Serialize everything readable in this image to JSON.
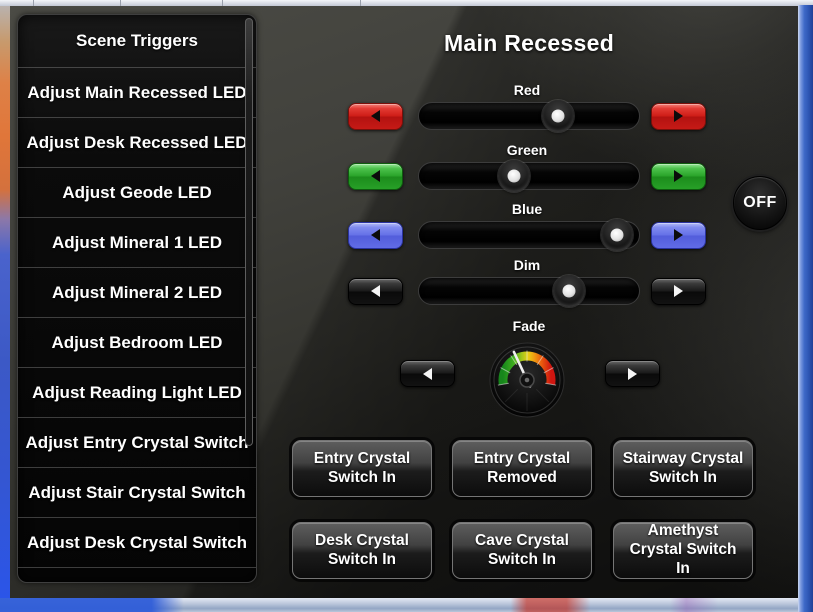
{
  "sidebar": {
    "items": [
      "Scene Triggers",
      "Adjust Main Recessed LED",
      "Adjust Desk Recessed LED",
      "Adjust Geode LED",
      "Adjust Mineral 1 LED",
      "Adjust Mineral 2 LED",
      "Adjust Bedroom LED",
      "Adjust Reading Light LED",
      "Adjust Entry Crystal Switch",
      "Adjust Stair Crystal Switch",
      "Adjust Desk Crystal Switch"
    ]
  },
  "main": {
    "title": "Main Recessed",
    "sliders": [
      {
        "label": "Red",
        "value_pct": 63,
        "accent": "#d0201a"
      },
      {
        "label": "Green",
        "value_pct": 43,
        "accent": "#2aa42a"
      },
      {
        "label": "Blue",
        "value_pct": 90,
        "accent": "#6571e8"
      },
      {
        "label": "Dim",
        "value_pct": 68,
        "accent": "#1a1a1a"
      }
    ],
    "fade_label": "Fade",
    "off_label": "OFF",
    "crystal_buttons": [
      "Entry Crystal Switch In",
      "Entry Crystal Removed",
      "Stairway Crystal Switch In",
      "Desk Crystal Switch In",
      "Cave Crystal Switch In",
      "Amethyst Crystal Switch In"
    ]
  }
}
